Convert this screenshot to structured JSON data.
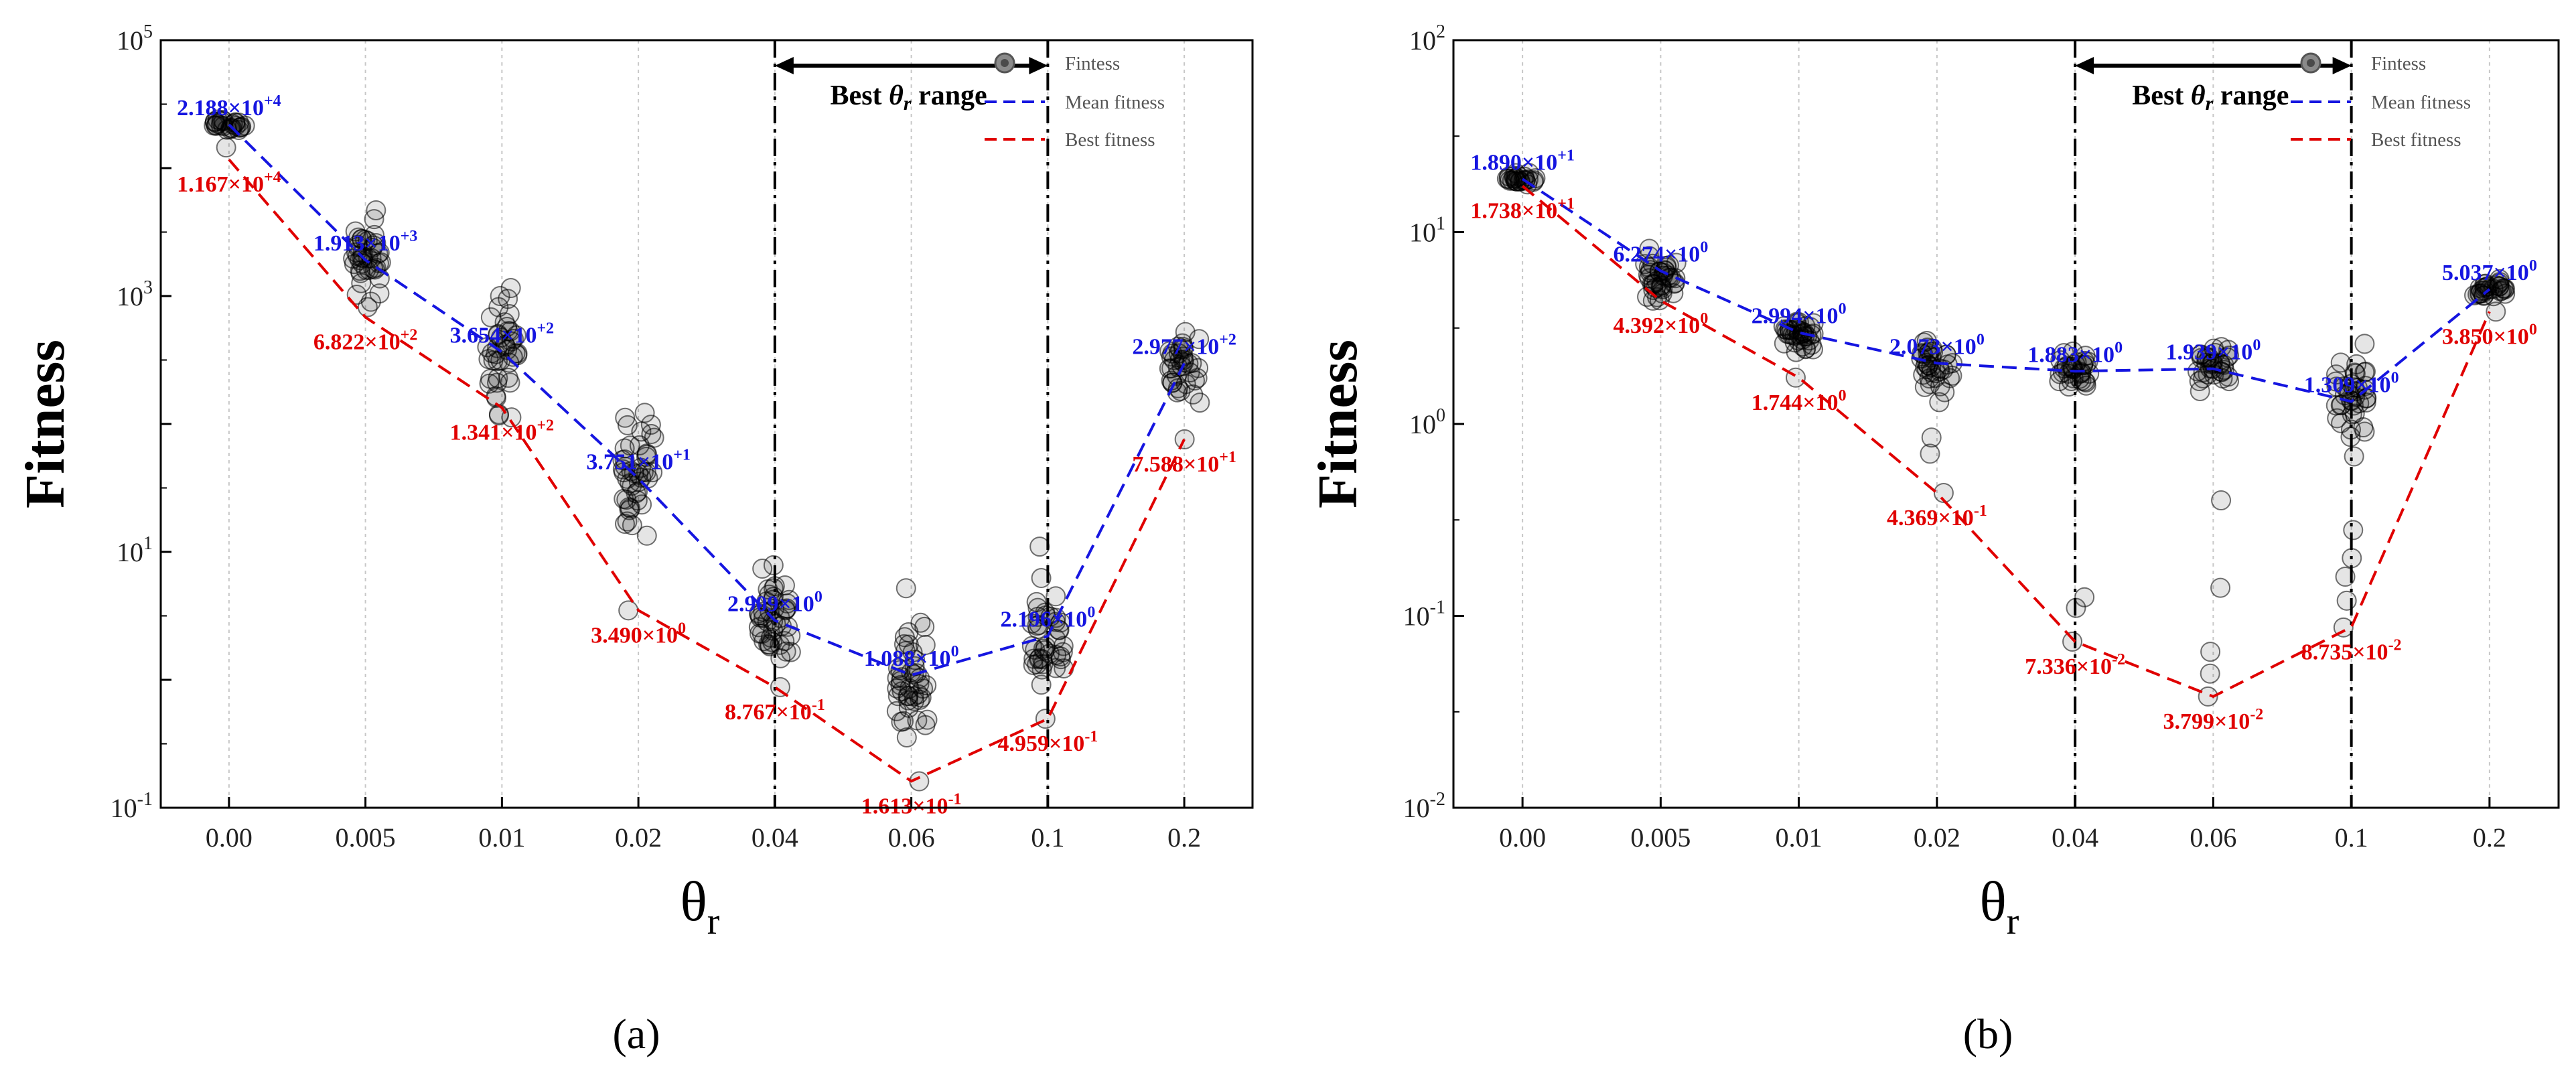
{
  "chart_data": [
    {
      "type": "scatter",
      "panel": "(a)",
      "xlabel": "θ",
      "xlabel_sub": "r",
      "ylabel": "Fitness",
      "ylim_log10": [
        -1,
        5
      ],
      "y_ticks": [
        {
          "exp": 5,
          "label_base": "10",
          "label_exp": "5"
        },
        {
          "exp": 3,
          "label_base": "10",
          "label_exp": "3"
        },
        {
          "exp": 1,
          "label_base": "10",
          "label_exp": "1"
        },
        {
          "exp": -1,
          "label_base": "10",
          "label_exp": "-1"
        }
      ],
      "categories": [
        "0.00",
        "0.005",
        "0.01",
        "0.02",
        "0.04",
        "0.06",
        "0.1",
        "0.2"
      ],
      "best_range": {
        "label_prefix": "Best",
        "label_theta": "θ",
        "label_sub": "r",
        "label_suffix": " range",
        "from_index": 4,
        "to_index": 6
      },
      "legend": [
        "Fintess",
        "Mean fitness",
        "Best fitness"
      ],
      "series": [
        {
          "name": "Mean fitness",
          "color": "#1515e0",
          "values": [
            21880,
            1913,
            365.4,
            37.51,
            2.909,
            1.088,
            2.196,
            297.7
          ]
        },
        {
          "name": "Best fitness",
          "color": "#e00000",
          "values": [
            11670,
            682.2,
            134.1,
            3.49,
            0.8767,
            0.1613,
            0.4959,
            75.88
          ]
        }
      ],
      "mean_labels": [
        {
          "mant": "2.188",
          "exp": "+4"
        },
        {
          "mant": "1.913",
          "exp": "+3"
        },
        {
          "mant": "3.654",
          "exp": "+2"
        },
        {
          "mant": "3.751",
          "exp": "+1"
        },
        {
          "mant": "2.909",
          "exp": "0"
        },
        {
          "mant": "1.088",
          "exp": "0"
        },
        {
          "mant": "2.196",
          "exp": "0"
        },
        {
          "mant": "2.977",
          "exp": "+2"
        }
      ],
      "best_labels": [
        {
          "mant": "1.167",
          "exp": "+4"
        },
        {
          "mant": "6.822",
          "exp": "+2"
        },
        {
          "mant": "1.341",
          "exp": "+2"
        },
        {
          "mant": "3.490",
          "exp": "0"
        },
        {
          "mant": "8.767",
          "exp": "-1"
        },
        {
          "mant": "1.613",
          "exp": "-1"
        },
        {
          "mant": "4.959",
          "exp": "-1"
        },
        {
          "mant": "7.588",
          "exp": "+1"
        }
      ],
      "scatter_groups": [
        {
          "center": 21880,
          "spread_dec": 0.08,
          "count": 26,
          "outliers": [
            14500
          ]
        },
        {
          "center": 1913,
          "spread_dec": 0.45,
          "count": 40,
          "outliers": [
            3200,
            820
          ]
        },
        {
          "center": 365.4,
          "spread_dec": 0.55,
          "count": 40,
          "outliers": [
            1000,
            950,
            160
          ]
        },
        {
          "center": 37.51,
          "spread_dec": 0.75,
          "count": 44,
          "outliers": [
            3.49
          ]
        },
        {
          "center": 2.909,
          "spread_dec": 0.7,
          "count": 44,
          "outliers": [
            0.877
          ]
        },
        {
          "center": 1.088,
          "spread_dec": 0.75,
          "count": 44,
          "outliers": [
            5.2,
            0.161
          ]
        },
        {
          "center": 2.196,
          "spread_dec": 0.65,
          "count": 40,
          "outliers": [
            11,
            0.496
          ]
        },
        {
          "center": 297.7,
          "spread_dec": 0.45,
          "count": 36,
          "outliers": [
            75.9
          ]
        }
      ]
    },
    {
      "type": "scatter",
      "panel": "(b)",
      "xlabel": "θ",
      "xlabel_sub": "r",
      "ylabel": "Fitness",
      "ylim_log10": [
        -2,
        2
      ],
      "y_ticks": [
        {
          "exp": 2,
          "label_base": "10",
          "label_exp": "2"
        },
        {
          "exp": 1,
          "label_base": "10",
          "label_exp": "1"
        },
        {
          "exp": 0,
          "label_base": "10",
          "label_exp": "0"
        },
        {
          "exp": -1,
          "label_base": "10",
          "label_exp": "-1"
        },
        {
          "exp": -2,
          "label_base": "10",
          "label_exp": "-2"
        }
      ],
      "categories": [
        "0.00",
        "0.005",
        "0.01",
        "0.02",
        "0.04",
        "0.06",
        "0.1",
        "0.2"
      ],
      "best_range": {
        "label_prefix": "Best",
        "label_theta": "θ",
        "label_sub": "r",
        "label_suffix": " range",
        "from_index": 4,
        "to_index": 6
      },
      "legend": [
        "Fintess",
        "Mean fitness",
        "Best fitness"
      ],
      "series": [
        {
          "name": "Mean fitness",
          "color": "#1515e0",
          "values": [
            18.9,
            6.274,
            2.994,
            2.073,
            1.883,
            1.939,
            1.309,
            5.037
          ]
        },
        {
          "name": "Best fitness",
          "color": "#e00000",
          "values": [
            17.38,
            4.392,
            1.744,
            0.4369,
            0.07336,
            0.03799,
            0.08735,
            3.85
          ]
        }
      ],
      "mean_labels": [
        {
          "mant": "1.890",
          "exp": "+1"
        },
        {
          "mant": "6.274",
          "exp": "0"
        },
        {
          "mant": "2.994",
          "exp": "0"
        },
        {
          "mant": "2.073",
          "exp": "0"
        },
        {
          "mant": "1.883",
          "exp": "0"
        },
        {
          "mant": "1.939",
          "exp": "0"
        },
        {
          "mant": "1.309",
          "exp": "0"
        },
        {
          "mant": "5.037",
          "exp": "0"
        }
      ],
      "best_labels": [
        {
          "mant": "1.738",
          "exp": "+1"
        },
        {
          "mant": "4.392",
          "exp": "0"
        },
        {
          "mant": "1.744",
          "exp": "0"
        },
        {
          "mant": "4.369",
          "exp": "-1"
        },
        {
          "mant": "7.336",
          "exp": "-2"
        },
        {
          "mant": "3.799",
          "exp": "-2"
        },
        {
          "mant": "8.735",
          "exp": "-2"
        },
        {
          "mant": "3.850",
          "exp": "0"
        }
      ],
      "scatter_groups": [
        {
          "center": 18.9,
          "spread_dec": 0.04,
          "count": 26,
          "outliers": []
        },
        {
          "center": 6.274,
          "spread_dec": 0.2,
          "count": 40,
          "outliers": [
            4.39
          ]
        },
        {
          "center": 2.994,
          "spread_dec": 0.15,
          "count": 38,
          "outliers": [
            1.744
          ]
        },
        {
          "center": 2.073,
          "spread_dec": 0.18,
          "count": 36,
          "outliers": [
            1.3,
            0.85,
            0.7,
            0.437
          ]
        },
        {
          "center": 1.883,
          "spread_dec": 0.15,
          "count": 34,
          "outliers": [
            0.125,
            0.11,
            0.0734
          ]
        },
        {
          "center": 1.939,
          "spread_dec": 0.15,
          "count": 34,
          "outliers": [
            0.4,
            0.14,
            0.065,
            0.05,
            0.038
          ]
        },
        {
          "center": 1.309,
          "spread_dec": 0.35,
          "count": 40,
          "outliers": [
            0.28,
            0.2,
            0.16,
            0.12,
            0.087
          ]
        },
        {
          "center": 5.037,
          "spread_dec": 0.07,
          "count": 30,
          "outliers": [
            3.85
          ]
        }
      ]
    }
  ]
}
